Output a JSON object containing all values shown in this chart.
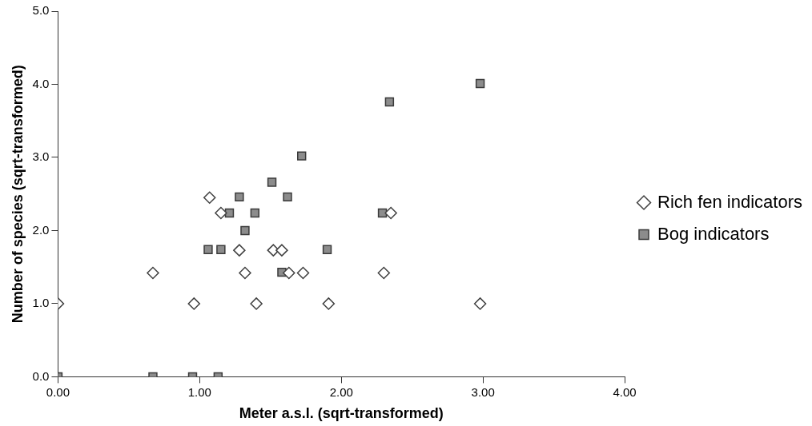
{
  "chart_data": {
    "type": "scatter",
    "xlabel": "Meter a.s.l. (sqrt-transformed)",
    "ylabel": "Number of species (sqrt-transformed)",
    "xlim": [
      0,
      4
    ],
    "xticks": [
      {
        "value": 0,
        "label": "0.00"
      },
      {
        "value": 1,
        "label": "1.00"
      },
      {
        "value": 2,
        "label": "2.00"
      },
      {
        "value": 3,
        "label": "3.00"
      },
      {
        "value": 4,
        "label": "4.00"
      }
    ],
    "ylim": [
      0,
      5
    ],
    "yticks": [
      {
        "value": 0,
        "label": "0.0"
      },
      {
        "value": 1,
        "label": "1.0"
      },
      {
        "value": 2,
        "label": "2.0"
      },
      {
        "value": 3,
        "label": "3.0"
      },
      {
        "value": 4,
        "label": "4.0"
      },
      {
        "value": 5,
        "label": "5.0"
      }
    ],
    "grid": false,
    "legend": "right",
    "series": [
      {
        "name": "Rich fen indicators",
        "color": "#404040",
        "marker": "diamond",
        "x": [
          0,
          0.67,
          0.96,
          1.07,
          1.15,
          1.28,
          1.32,
          1.4,
          1.52,
          1.58,
          1.63,
          1.73,
          1.91,
          2.3,
          2.35,
          2.98
        ],
        "values": [
          1.0,
          1.42,
          1.0,
          2.45,
          2.24,
          1.73,
          1.42,
          1.0,
          1.73,
          1.73,
          1.42,
          1.42,
          1.0,
          1.42,
          2.24,
          1.0
        ]
      },
      {
        "name": "Bog indicators",
        "color": "#8c8c8c",
        "marker": "square",
        "x": [
          0,
          0.67,
          0.95,
          1.13,
          1.06,
          1.15,
          1.21,
          1.28,
          1.32,
          1.39,
          1.51,
          1.58,
          1.62,
          1.72,
          1.9,
          2.29,
          2.34,
          2.98
        ],
        "values": [
          0,
          0,
          0,
          0,
          1.74,
          1.74,
          2.24,
          2.46,
          2.0,
          2.24,
          2.66,
          1.43,
          2.46,
          3.02,
          1.74,
          2.24,
          3.76,
          4.01
        ]
      }
    ]
  }
}
